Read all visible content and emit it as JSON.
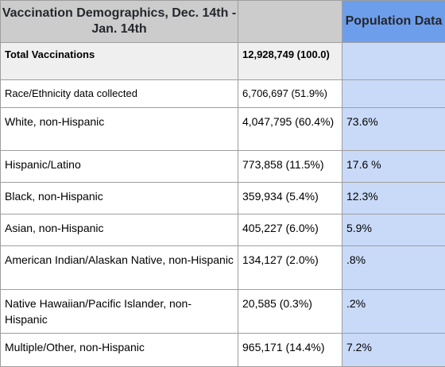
{
  "headers": {
    "demographics": "Vaccination Demographics, Dec. 14th - Jan. 14th",
    "blank": "",
    "population": "Population Data"
  },
  "rows": [
    {
      "category": "Total Vaccinations",
      "vaccinations": "12,928,749 (100.0)",
      "population": ""
    },
    {
      "category": "Race/Ethnicity data collected",
      "vaccinations": "6,706,697 (51.9%)",
      "population": ""
    },
    {
      "category": "White, non-Hispanic",
      "vaccinations": "4,047,795 (60.4%)",
      "population": "73.6%"
    },
    {
      "category": "Hispanic/Latino",
      "vaccinations": "773,858 (11.5%)",
      "population": "17.6 %"
    },
    {
      "category": "Black, non-Hispanic",
      "vaccinations": "359,934 (5.4%)",
      "population": "12.3%"
    },
    {
      "category": "Asian, non-Hispanic",
      "vaccinations": "405,227 (6.0%)",
      "population": "5.9%"
    },
    {
      "category": "American Indian/Alaskan Native, non-Hispanic",
      "vaccinations": "134,127 (2.0%)",
      "population": ".8%"
    },
    {
      "category": "Native Hawaiian/Pacific Islander, non-Hispanic",
      "vaccinations": "20,585 (0.3%)",
      "population": ".2%"
    },
    {
      "category": "Multiple/Other, non-Hispanic",
      "vaccinations": "965,171 (14.4%)",
      "population": "7.2%"
    }
  ],
  "colors": {
    "header_gray": "#cccccc",
    "header_blue": "#6d9eeb",
    "cell_blue": "#c9daf8",
    "total_row_gray": "#efefef"
  }
}
